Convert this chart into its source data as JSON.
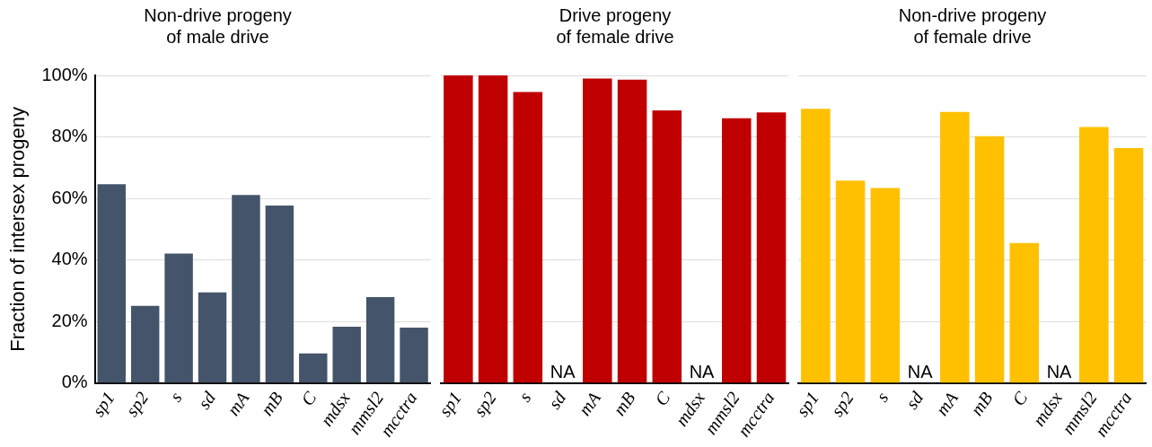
{
  "chart_data": [
    {
      "type": "bar",
      "title": "Non-drive progeny\nof male drive",
      "ylabel": "Fraction of intersex progeny",
      "categories": [
        "sp1",
        "sp2",
        "s",
        "sd",
        "mA",
        "mB",
        "C",
        "mdsx",
        "mmsl2",
        "mcctra"
      ],
      "values": [
        64.6,
        25.1,
        42.1,
        29.5,
        61.1,
        57.7,
        9.6,
        18.3,
        27.9,
        18.0
      ],
      "color": "#44546a",
      "ylim": [
        0,
        100
      ],
      "yticks": [
        {
          "value": 0,
          "label": "0%"
        },
        {
          "value": 20,
          "label": "20%"
        },
        {
          "value": 40,
          "label": "40%"
        },
        {
          "value": 60,
          "label": "60%"
        },
        {
          "value": 80,
          "label": "80%"
        },
        {
          "value": 100,
          "label": "100%"
        }
      ],
      "grid": "y"
    },
    {
      "type": "bar",
      "title": "Drive progeny\nof female drive",
      "categories": [
        "sp1",
        "sp2",
        "s",
        "sd",
        "mA",
        "mB",
        "C",
        "mdsx",
        "mmsl2",
        "mcctra"
      ],
      "values": [
        100,
        100,
        94.6,
        null,
        99.0,
        98.6,
        88.6,
        null,
        86.1,
        88.0
      ],
      "color": "#c00000",
      "value_labels": [
        null,
        null,
        null,
        "NA",
        null,
        null,
        null,
        "NA",
        null,
        null
      ],
      "ylim": [
        0,
        100
      ],
      "yticks": [
        0,
        20,
        40,
        60,
        80,
        100
      ],
      "grid": "y",
      "tick_labels": "x"
    },
    {
      "type": "bar",
      "title": "Non-drive progeny\nof female drive",
      "categories": [
        "sp1",
        "sp2",
        "s",
        "sd",
        "mA",
        "mB",
        "C",
        "mdsx",
        "mmsl2",
        "mcctra"
      ],
      "values": [
        89.1,
        65.8,
        63.4,
        null,
        88.1,
        80.2,
        45.5,
        null,
        83.2,
        76.4
      ],
      "color": "#ffc000",
      "value_labels": [
        null,
        null,
        null,
        "NA",
        null,
        null,
        null,
        "NA",
        null,
        null
      ],
      "ylim": [
        0,
        100
      ],
      "yticks": [
        0,
        20,
        40,
        60,
        80,
        100
      ],
      "grid": "y",
      "tick_labels": "x"
    }
  ]
}
